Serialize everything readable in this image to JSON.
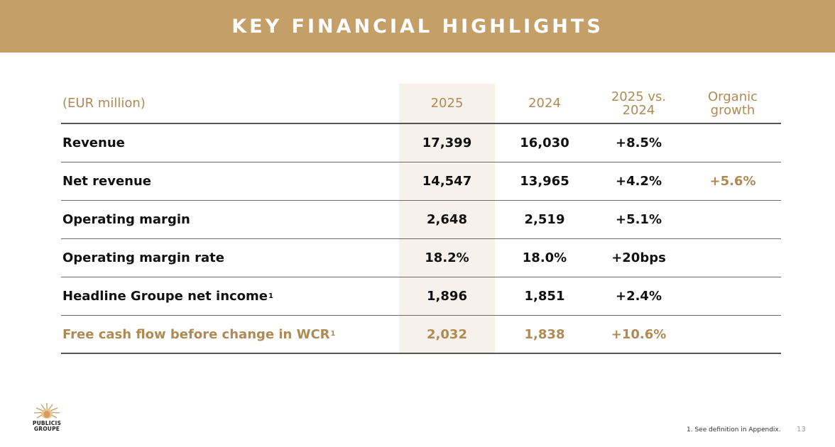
{
  "title": "KEY FINANCIAL HIGHLIGHTS",
  "table": {
    "headers": {
      "label": "(EUR million)",
      "col_2025": "2025",
      "col_2024": "2024",
      "col_change_line1": "2025 vs.",
      "col_change_line2": "2024",
      "col_organic_line1": "Organic",
      "col_organic_line2": "growth"
    },
    "rows": [
      {
        "label": "Revenue",
        "sup": "",
        "v2025": "17,399",
        "v2024": "16,030",
        "change": "+8.5%",
        "organic": ""
      },
      {
        "label": "Net revenue",
        "sup": "",
        "v2025": "14,547",
        "v2024": "13,965",
        "change": "+4.2%",
        "organic": "+5.6%"
      },
      {
        "label": "Operating margin",
        "sup": "",
        "v2025": "2,648",
        "v2024": "2,519",
        "change": "+5.1%",
        "organic": ""
      },
      {
        "label": "Operating margin rate",
        "sup": "",
        "v2025": "18.2%",
        "v2024": "18.0%",
        "change": "+20bps",
        "organic": ""
      },
      {
        "label": "Headline Groupe net income",
        "sup": "1",
        "v2025": "1,896",
        "v2024": "1,851",
        "change": "+2.4%",
        "organic": ""
      },
      {
        "label": "Free cash flow before change in WCR",
        "sup": "1",
        "v2025": "2,032",
        "v2024": "1,838",
        "change": "+10.6%",
        "organic": ""
      }
    ]
  },
  "logo": {
    "line1": "PUBLICIS",
    "line2": "GROUPE",
    "icon": "lion-sun-icon"
  },
  "footnote": "1. See definition in Appendix.",
  "page_number": "13",
  "colors": {
    "accent": "#c49f68",
    "accent_text": "#b08a55",
    "highlight": "#f6f1ea"
  }
}
